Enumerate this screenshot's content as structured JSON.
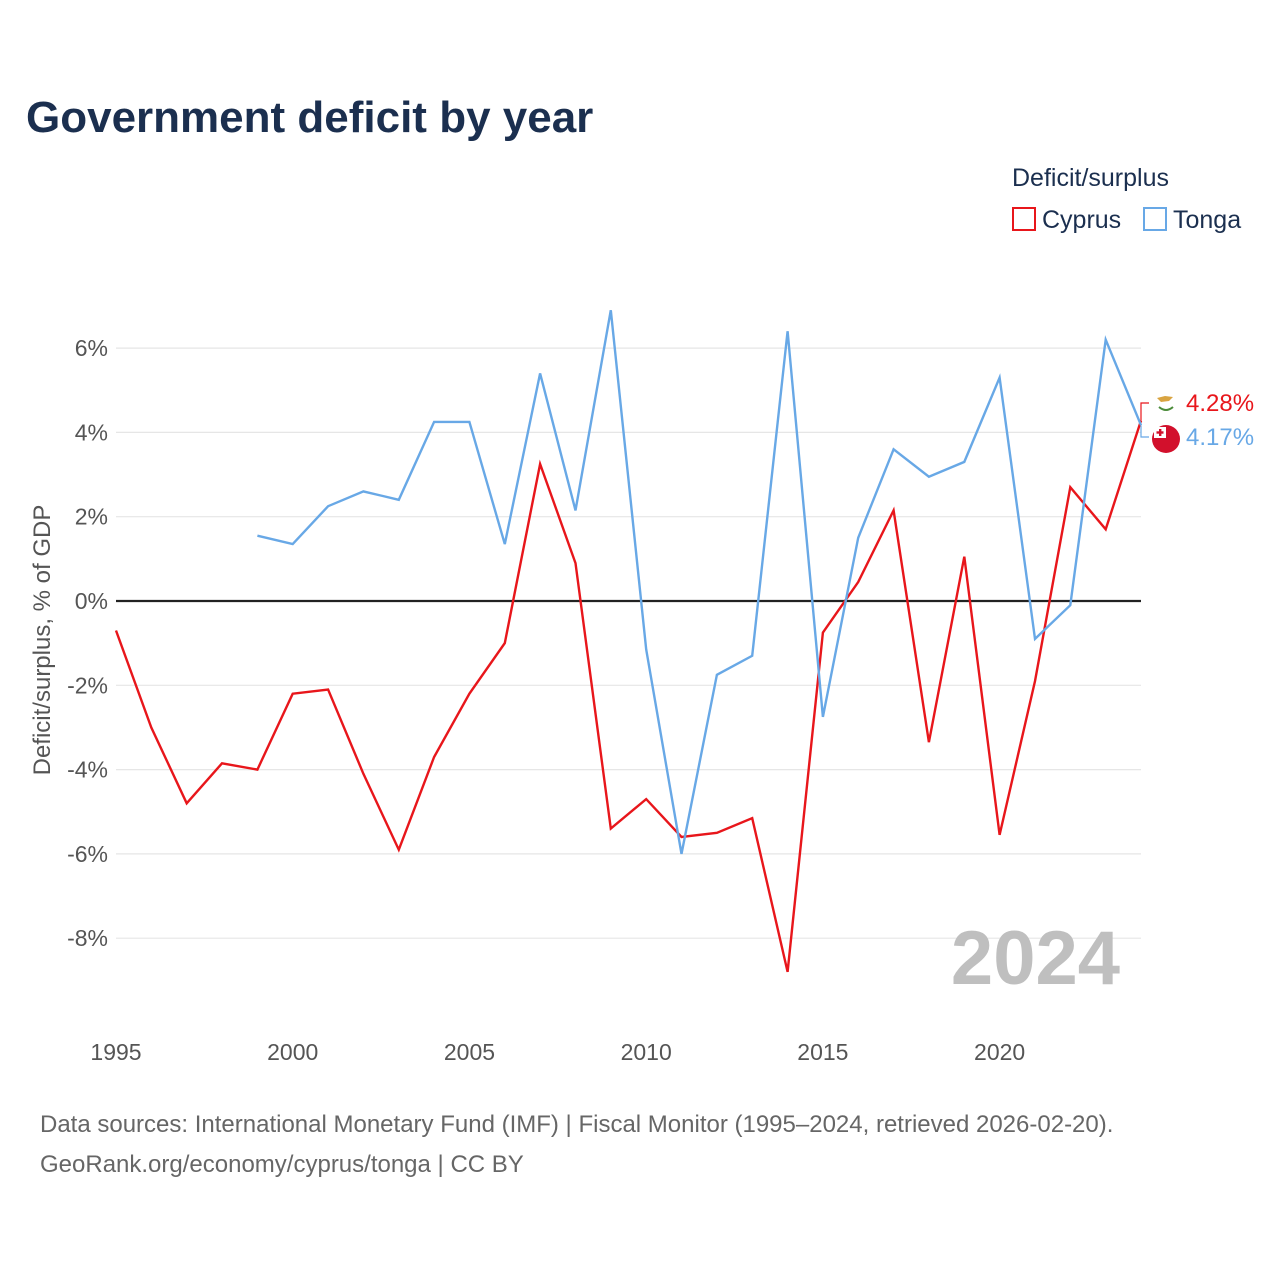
{
  "chart_data": {
    "type": "line",
    "title": "Government deficit by year",
    "xlabel": "",
    "ylabel": "Deficit/surplus, % of GDP",
    "xlim": [
      1995,
      2024
    ],
    "ylim": [
      -10,
      7
    ],
    "x_ticks": [
      1995,
      2000,
      2005,
      2010,
      2015,
      2020
    ],
    "x_tick_labels": [
      "1995",
      "2000",
      "2005",
      "2010",
      "2015",
      "2020"
    ],
    "y_ticks": [
      -8,
      -6,
      -4,
      -2,
      0,
      2,
      4,
      6
    ],
    "y_tick_labels": [
      "-8%",
      "-6%",
      "-4%",
      "-2%",
      "0%",
      "2%",
      "4%",
      "6%"
    ],
    "legend": {
      "title": "Deficit/surplus",
      "placement": "top-right"
    },
    "series": [
      {
        "name": "Cyprus",
        "color": "#e8161b",
        "flag_icon": "cyprus-flag-icon",
        "end_label": "4.28%",
        "x": [
          1995,
          1996,
          1997,
          1998,
          1999,
          2000,
          2001,
          2002,
          2003,
          2004,
          2005,
          2006,
          2007,
          2008,
          2009,
          2010,
          2011,
          2012,
          2013,
          2014,
          2015,
          2016,
          2017,
          2018,
          2019,
          2020,
          2021,
          2022,
          2023,
          2024
        ],
        "values": [
          -0.7,
          -3.0,
          -4.8,
          -3.85,
          -4.0,
          -2.2,
          -2.1,
          -4.1,
          -5.9,
          -3.7,
          -2.2,
          -1.0,
          3.25,
          0.9,
          -5.4,
          -4.7,
          -5.6,
          -5.5,
          -5.15,
          -8.8,
          -0.75,
          0.45,
          2.15,
          -3.35,
          1.05,
          -5.55,
          -1.9,
          2.7,
          1.7,
          4.28
        ]
      },
      {
        "name": "Tonga",
        "color": "#68a8e6",
        "flag_icon": "tonga-flag-icon",
        "end_label": "4.17%",
        "x": [
          1999,
          2000,
          2001,
          2002,
          2003,
          2004,
          2005,
          2006,
          2007,
          2008,
          2009,
          2010,
          2011,
          2012,
          2013,
          2014,
          2015,
          2016,
          2017,
          2018,
          2019,
          2020,
          2021,
          2022,
          2023,
          2024
        ],
        "values": [
          1.55,
          1.35,
          2.25,
          2.6,
          2.4,
          4.25,
          4.25,
          1.35,
          5.4,
          2.15,
          6.9,
          -1.15,
          -6.0,
          -1.75,
          -1.3,
          6.4,
          -2.75,
          1.5,
          3.6,
          2.95,
          3.3,
          5.3,
          -0.9,
          -0.1,
          6.2,
          4.17
        ]
      }
    ],
    "annotation": "2024"
  },
  "footer": {
    "source_line": "Data sources: International Monetary Fund (IMF) | Fiscal Monitor (1995–2024, retrieved 2026-02-20).",
    "credit_line": "GeoRank.org/economy/cyprus/tonga | CC BY"
  }
}
